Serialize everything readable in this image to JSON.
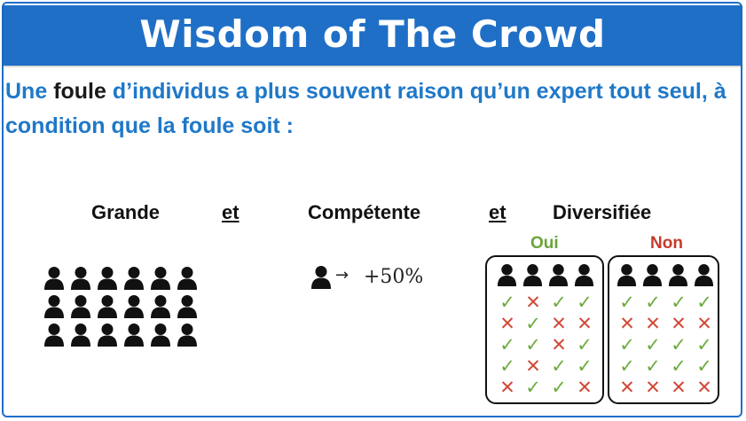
{
  "title": "Wisdom of The Crowd",
  "statement": {
    "part1": "Une ",
    "keyword": "foule",
    "part2": " d’individus a plus souvent raison qu’un expert tout seul, à condition que la foule soit :"
  },
  "criteria": {
    "grande": "Grande",
    "et1": "et",
    "competente": "Compétente",
    "et2": "et",
    "diversifiee": "Diversifiée"
  },
  "competence": {
    "arrow": "→",
    "value": "+50%"
  },
  "diversity": {
    "oui_label": "Oui",
    "non_label": "Non",
    "oui_marks": [
      [
        "check",
        "cross",
        "check",
        "check"
      ],
      [
        "cross",
        "check",
        "cross",
        "cross"
      ],
      [
        "check",
        "check",
        "cross",
        "check"
      ],
      [
        "check",
        "cross",
        "check",
        "check"
      ],
      [
        "cross",
        "check",
        "check",
        "cross"
      ]
    ],
    "non_marks": [
      [
        "check",
        "check",
        "check",
        "check"
      ],
      [
        "cross",
        "cross",
        "cross",
        "cross"
      ],
      [
        "check",
        "check",
        "check",
        "check"
      ],
      [
        "check",
        "check",
        "check",
        "check"
      ],
      [
        "cross",
        "cross",
        "cross",
        "cross"
      ]
    ]
  },
  "colors": {
    "banner": "#1f6fc7",
    "statement_text": "#1f78c8",
    "check": "#6cab3e",
    "cross": "#d04a3a",
    "oui": "#6aa43a",
    "non": "#c63a2a"
  },
  "icons": {
    "person": "person-icon",
    "check": "check-icon",
    "cross": "cross-icon"
  },
  "crowd": {
    "rows": 3,
    "cols": 6
  }
}
